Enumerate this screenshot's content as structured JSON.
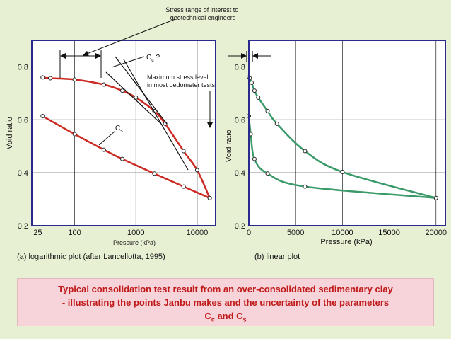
{
  "chart_data": [
    {
      "type": "line",
      "title": "",
      "caption": "(a) logarithmic plot (after Lancellotta, 1995)",
      "xlabel": "Pressure (kPa)",
      "ylabel": "Void ratio",
      "xscale": "log",
      "xlim": [
        20,
        20000
      ],
      "ylim": [
        0.2,
        0.9
      ],
      "xticks": [
        "25",
        "100",
        "1000",
        "10000"
      ],
      "yticks": [
        "0.2",
        "0.4",
        "0.6",
        "0.8"
      ],
      "grid": true,
      "series": [
        {
          "color": "#cc2a22",
          "points": [
            [
              30,
              0.76
            ],
            [
              40,
              0.757
            ],
            [
              100,
              0.752
            ],
            [
              300,
              0.733
            ],
            [
              600,
              0.71
            ],
            [
              1000,
              0.684
            ],
            [
              2000,
              0.633
            ],
            [
              3000,
              0.585
            ],
            [
              6000,
              0.482
            ],
            [
              10000,
              0.41
            ],
            [
              16000,
              0.305
            ]
          ]
        },
        {
          "color": "#cc2a22",
          "points": [
            [
              30,
              0.614
            ],
            [
              100,
              0.546
            ],
            [
              300,
              0.487
            ],
            [
              600,
              0.452
            ],
            [
              2000,
              0.397
            ],
            [
              6000,
              0.348
            ],
            [
              16000,
              0.305
            ]
          ]
        }
      ],
      "annotations": {
        "stress_range": "Stress range of interest to geotechnical engineers",
        "cc": "Cc ?",
        "max_stress": "Maximum stress level in most oedometer tests",
        "cs": "Cs"
      }
    },
    {
      "type": "line",
      "title": "",
      "caption": "(b) linear plot",
      "xlabel": "Pressure (kPa)",
      "ylabel": "Void ratio",
      "xlim": [
        0,
        21000
      ],
      "ylim": [
        0.2,
        0.9
      ],
      "xticks": [
        "0",
        "5000",
        "10000",
        "15000",
        "20000"
      ],
      "yticks": [
        "0.2",
        "0.4",
        "0.6",
        "0.8"
      ],
      "grid": true,
      "series": [
        {
          "color": "#3a9a6a",
          "points": [
            [
              0,
              0.76
            ],
            [
              100,
              0.757
            ],
            [
              300,
              0.74
            ],
            [
              600,
              0.71
            ],
            [
              1000,
              0.684
            ],
            [
              2000,
              0.633
            ],
            [
              3000,
              0.585
            ],
            [
              6000,
              0.482
            ],
            [
              10000,
              0.403
            ],
            [
              20000,
              0.305
            ]
          ]
        },
        {
          "color": "#3a9a6a",
          "points": [
            [
              0,
              0.614
            ],
            [
              200,
              0.546
            ],
            [
              600,
              0.452
            ],
            [
              2000,
              0.397
            ],
            [
              6000,
              0.348
            ],
            [
              20000,
              0.305
            ]
          ]
        }
      ]
    }
  ],
  "banner": {
    "line1": "Typical consolidation test result from an over-consolidated sedimentary clay",
    "line2": "- illustrating the points Janbu makes and the uncertainty of the parameters",
    "line3_a": "C",
    "line3_sub1": "c",
    "line3_b": " and C",
    "line3_sub2": "s"
  }
}
